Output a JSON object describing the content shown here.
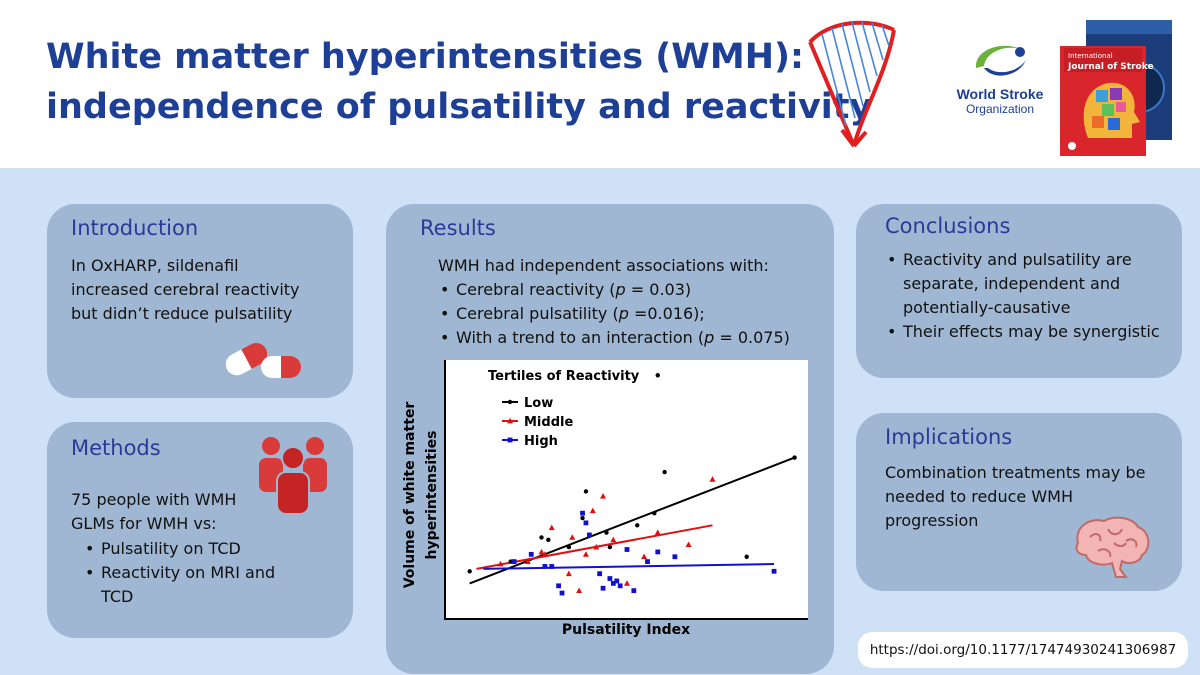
{
  "title": {
    "line1": "White matter hyperintensities (WMH):",
    "line2": "independence of pulsatility and reactivity"
  },
  "logos": {
    "harp": "harp-logo",
    "organization_line1": "World Stroke",
    "organization_line2": "Organization",
    "journal_cover": "journal-cover",
    "journal_name_line1": "International",
    "journal_name_line2": "Journal of Stroke"
  },
  "introduction": {
    "heading": "Introduction",
    "lines": [
      "In OxHARP, sildenafil",
      "increased cerebral reactivity",
      "but didn’t reduce pulsatility"
    ],
    "icon": "pill-icon"
  },
  "methods": {
    "heading": "Methods",
    "lines": [
      "75 people with WMH",
      "GLMs for WMH vs:"
    ],
    "bullets": [
      [
        "Pulsatility on TCD"
      ],
      [
        "Reactivity on MRI and",
        "TCD"
      ]
    ],
    "icon": "people-group-icon"
  },
  "results": {
    "heading": "Results",
    "intro": "WMH had independent associations with:",
    "bullets": [
      {
        "pre": "Cerebral reactivity (",
        "p": "p",
        "post": " = 0.03)"
      },
      {
        "pre": "Cerebral pulsatility (",
        "p": "p",
        "post": " =0.016);"
      },
      {
        "pre": "With a trend to an interaction (",
        "p": "p",
        "post": " = 0.075)"
      }
    ]
  },
  "conclusions": {
    "heading": "Conclusions",
    "bullets": [
      [
        "Reactivity and pulsatility are",
        "separate, independent and",
        "potentially-causative"
      ],
      [
        "Their effects may be synergistic"
      ]
    ]
  },
  "implications": {
    "heading": "Implications",
    "lines": [
      "Combination treatments may be",
      "needed to reduce WMH",
      "progression"
    ],
    "icon": "brain-icon"
  },
  "doi": "https://doi.org/10.1177/17474930241306987",
  "chart_data": {
    "type": "scatter",
    "title": "",
    "xlabel": "Pulsatility Index",
    "ylabel_lines": [
      "Volume of white matter",
      "hyperintensities"
    ],
    "legend_title": "Tertiles of Reactivity",
    "legend_position": "top-left",
    "xlim": [
      0,
      100
    ],
    "ylim": [
      0,
      100
    ],
    "axis_ticks": false,
    "series": [
      {
        "name": "Low",
        "color": "#000000",
        "marker": "circle",
        "points": [
          [
            4,
            16
          ],
          [
            16,
            20
          ],
          [
            25,
            30
          ],
          [
            27,
            29
          ],
          [
            33,
            26
          ],
          [
            37,
            38
          ],
          [
            38,
            49
          ],
          [
            44,
            32
          ],
          [
            45,
            26
          ],
          [
            53,
            35
          ],
          [
            58,
            40
          ],
          [
            59,
            97
          ],
          [
            61,
            57
          ],
          [
            85,
            22
          ],
          [
            99,
            63
          ]
        ],
        "fit": [
          [
            4,
            11
          ],
          [
            99,
            63
          ]
        ]
      },
      {
        "name": "Middle",
        "color": "#dd1111",
        "marker": "triangle",
        "points": [
          [
            13,
            19
          ],
          [
            21,
            20
          ],
          [
            25,
            24
          ],
          [
            26,
            23
          ],
          [
            28,
            34
          ],
          [
            33,
            15
          ],
          [
            34,
            30
          ],
          [
            36,
            8
          ],
          [
            38,
            23
          ],
          [
            40,
            41
          ],
          [
            41,
            26
          ],
          [
            43,
            47
          ],
          [
            46,
            29
          ],
          [
            50,
            11
          ],
          [
            55,
            22
          ],
          [
            59,
            32
          ],
          [
            68,
            27
          ],
          [
            75,
            54
          ]
        ],
        "fit": [
          [
            6,
            17
          ],
          [
            75,
            35
          ]
        ]
      },
      {
        "name": "High",
        "color": "#1111cc",
        "marker": "square",
        "points": [
          [
            17,
            20
          ],
          [
            22,
            23
          ],
          [
            26,
            18
          ],
          [
            28,
            18
          ],
          [
            30,
            10
          ],
          [
            31,
            7
          ],
          [
            37,
            40
          ],
          [
            38,
            36
          ],
          [
            39,
            31
          ],
          [
            42,
            15
          ],
          [
            43,
            9
          ],
          [
            45,
            13
          ],
          [
            46,
            11
          ],
          [
            47,
            12
          ],
          [
            48,
            10
          ],
          [
            50,
            25
          ],
          [
            52,
            8
          ],
          [
            56,
            20
          ],
          [
            59,
            24
          ],
          [
            64,
            22
          ],
          [
            93,
            16
          ]
        ],
        "fit": [
          [
            8,
            17
          ],
          [
            93,
            19
          ]
        ]
      }
    ]
  }
}
